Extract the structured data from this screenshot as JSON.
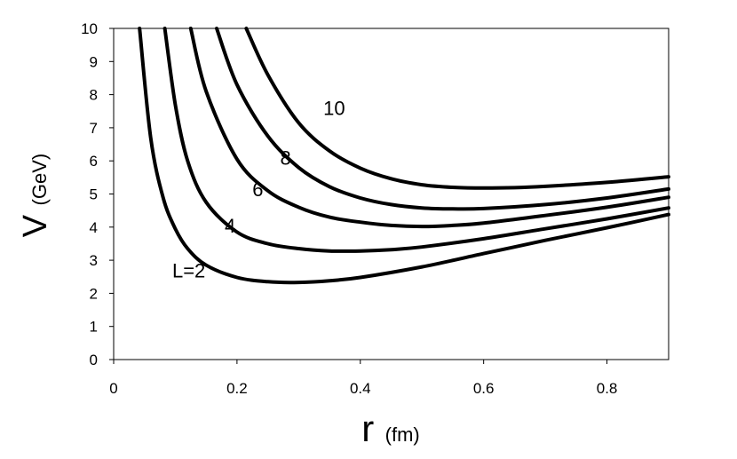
{
  "chart_data": {
    "type": "line",
    "x_axis": {
      "symbol": "r",
      "unit": "(fm)",
      "xlim": [
        0,
        0.9
      ],
      "ticks": [
        0,
        0.2,
        0.4,
        0.6,
        0.8
      ],
      "tick_labels": [
        "0",
        "0.2",
        "0.4",
        "0.6",
        "0.8"
      ]
    },
    "y_axis": {
      "symbol": "V",
      "unit": "(GeV)",
      "ylim": [
        0,
        10
      ],
      "ticks": [
        0,
        1,
        2,
        3,
        4,
        5,
        6,
        7,
        8,
        9,
        10
      ],
      "tick_labels": [
        "0",
        "1",
        "2",
        "3",
        "4",
        "5",
        "6",
        "7",
        "8",
        "9",
        "10"
      ]
    },
    "grid": false,
    "series": [
      {
        "name": "L=2",
        "x": [
          0.042,
          0.06,
          0.08,
          0.1,
          0.12,
          0.15,
          0.2,
          0.25,
          0.3,
          0.35,
          0.4,
          0.5,
          0.6,
          0.7,
          0.8,
          0.9
        ],
        "y": [
          10.0,
          6.7,
          4.9,
          3.95,
          3.35,
          2.85,
          2.48,
          2.35,
          2.33,
          2.38,
          2.48,
          2.8,
          3.2,
          3.6,
          3.98,
          4.38
        ]
      },
      {
        "name": "4",
        "x": [
          0.083,
          0.1,
          0.12,
          0.15,
          0.2,
          0.25,
          0.3,
          0.35,
          0.4,
          0.45,
          0.5,
          0.6,
          0.7,
          0.8,
          0.9
        ],
        "y": [
          10.0,
          7.7,
          6.0,
          4.75,
          3.85,
          3.5,
          3.35,
          3.28,
          3.28,
          3.32,
          3.4,
          3.65,
          3.95,
          4.25,
          4.58
        ]
      },
      {
        "name": "6",
        "x": [
          0.125,
          0.15,
          0.2,
          0.25,
          0.3,
          0.35,
          0.4,
          0.45,
          0.5,
          0.55,
          0.6,
          0.7,
          0.8,
          0.9
        ],
        "y": [
          10.0,
          8.1,
          6.05,
          5.1,
          4.6,
          4.3,
          4.15,
          4.05,
          4.02,
          4.05,
          4.12,
          4.35,
          4.6,
          4.9
        ]
      },
      {
        "name": "8",
        "x": [
          0.167,
          0.2,
          0.25,
          0.3,
          0.35,
          0.4,
          0.45,
          0.5,
          0.55,
          0.6,
          0.7,
          0.8,
          0.9
        ],
        "y": [
          10.0,
          8.3,
          6.75,
          5.8,
          5.22,
          4.88,
          4.68,
          4.58,
          4.55,
          4.56,
          4.68,
          4.88,
          5.15
        ]
      },
      {
        "name": "10",
        "x": [
          0.215,
          0.25,
          0.3,
          0.35,
          0.4,
          0.45,
          0.5,
          0.55,
          0.6,
          0.65,
          0.7,
          0.8,
          0.9
        ],
        "y": [
          10.0,
          8.6,
          7.15,
          6.3,
          5.78,
          5.46,
          5.28,
          5.2,
          5.18,
          5.19,
          5.23,
          5.35,
          5.52
        ]
      }
    ],
    "labels": [
      {
        "text": "10",
        "x": 0.34,
        "y": 7.6
      },
      {
        "text": "8",
        "x": 0.27,
        "y": 6.1
      },
      {
        "text": "6",
        "x": 0.225,
        "y": 5.15
      },
      {
        "text": "4",
        "x": 0.18,
        "y": 4.05
      },
      {
        "text": "L=2",
        "x": 0.095,
        "y": 2.7
      }
    ]
  }
}
